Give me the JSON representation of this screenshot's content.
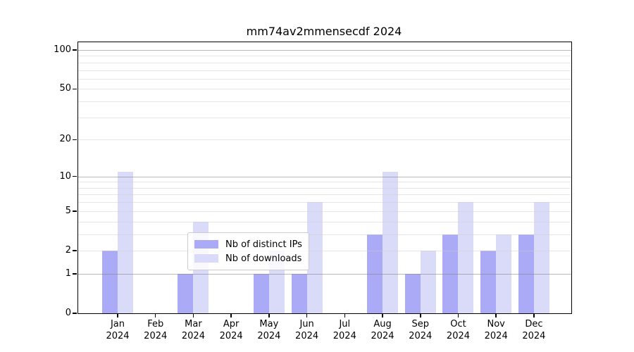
{
  "chart_data": {
    "type": "bar",
    "title": "mm74av2mmensecdf 2024",
    "categories": [
      "Jan",
      "Feb",
      "Mar",
      "Apr",
      "May",
      "Jun",
      "Jul",
      "Aug",
      "Sep",
      "Oct",
      "Nov",
      "Dec"
    ],
    "year": "2024",
    "series": [
      {
        "name": "Nb of distinct IPs",
        "color": "#aaaaf7",
        "values": [
          2,
          0,
          1,
          0,
          1,
          1,
          0,
          3,
          1,
          3,
          2,
          3
        ]
      },
      {
        "name": "Nb of downloads",
        "color": "#dadaf9",
        "values": [
          11,
          0,
          4,
          0,
          2,
          6,
          0,
          11,
          2,
          6,
          3,
          6
        ]
      }
    ],
    "xlabel": "",
    "ylabel": "",
    "scale": "log1p",
    "ylim": [
      0,
      115
    ],
    "y_tick_labels": [
      0,
      1,
      2,
      5,
      10,
      20,
      50,
      100
    ],
    "major_gridlines": [
      1,
      10,
      100
    ],
    "minor_gridlines": [
      2,
      3,
      4,
      5,
      6,
      7,
      8,
      9,
      20,
      30,
      40,
      50,
      60,
      70,
      80,
      90
    ],
    "grid": true,
    "legend_position": "lower center"
  },
  "colors": {
    "background": "#ffffff",
    "spine": "#000000",
    "text": "#000000",
    "legend_border": "#cccccc"
  }
}
